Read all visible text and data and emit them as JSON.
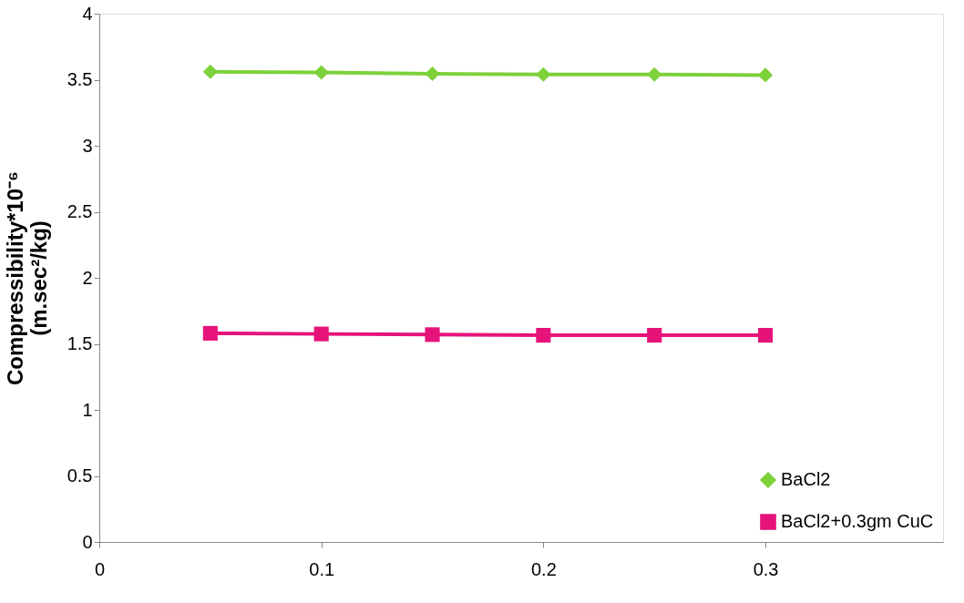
{
  "chart_data": {
    "type": "line",
    "ylabel": "Compressibility*10⁻⁶\n(m.sec²/kg)",
    "x": [
      0.05,
      0.1,
      0.15,
      0.2,
      0.25,
      0.3
    ],
    "series": [
      {
        "name": "BaCl2",
        "color": "#7dd13a",
        "marker": "diamond",
        "values": [
          3.56,
          3.555,
          3.545,
          3.54,
          3.54,
          3.535
        ]
      },
      {
        "name": "BaCl2+0.3gm CuC",
        "color": "#e6137a",
        "marker": "square",
        "values": [
          1.58,
          1.575,
          1.57,
          1.565,
          1.565,
          1.565
        ]
      }
    ],
    "xlim": [
      0,
      0.38
    ],
    "xticks": [
      0,
      0.1,
      0.2,
      0.3
    ],
    "ylim": [
      0,
      4
    ],
    "yticks": [
      0,
      0.5,
      1,
      1.5,
      2,
      2.5,
      3,
      3.5,
      4
    ],
    "grid": false,
    "legend": "bottom right",
    "line_style": "solid"
  }
}
